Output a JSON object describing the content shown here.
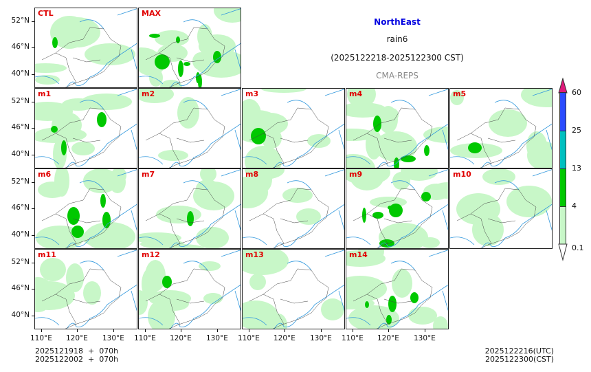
{
  "title": {
    "region": "NorthEast",
    "variable": "rain6",
    "period": "(2025122218-2025122300 CST)",
    "model": "CMA-REPS"
  },
  "colors": {
    "region": "#0000e0",
    "panel_label": "#e00000",
    "light_green": "#c8f7c8",
    "green": "#00c800",
    "cyan": "#00c0c0",
    "blue": "#2a4bff",
    "magenta": "#e0197a"
  },
  "panels": [
    {
      "label": "CTL",
      "row": 0,
      "col": 0,
      "rain": 0.35,
      "heavy": 0.05
    },
    {
      "label": "MAX",
      "row": 0,
      "col": 1,
      "rain": 0.8,
      "heavy": 0.6
    },
    {
      "label": "m1",
      "row": 1,
      "col": 0,
      "rain": 0.55,
      "heavy": 0.2
    },
    {
      "label": "m2",
      "row": 1,
      "col": 1,
      "rain": 0.2,
      "heavy": 0.0
    },
    {
      "label": "m3",
      "row": 1,
      "col": 2,
      "rain": 0.5,
      "heavy": 0.15
    },
    {
      "label": "m4",
      "row": 1,
      "col": 3,
      "rain": 0.65,
      "heavy": 0.25
    },
    {
      "label": "m5",
      "row": 1,
      "col": 4,
      "rain": 0.45,
      "heavy": 0.05
    },
    {
      "label": "m6",
      "row": 2,
      "col": 0,
      "rain": 0.6,
      "heavy": 0.3
    },
    {
      "label": "m7",
      "row": 2,
      "col": 1,
      "rain": 0.55,
      "heavy": 0.1
    },
    {
      "label": "m8",
      "row": 2,
      "col": 2,
      "rain": 0.35,
      "heavy": 0.0
    },
    {
      "label": "m9",
      "row": 2,
      "col": 3,
      "rain": 0.7,
      "heavy": 0.45
    },
    {
      "label": "m10",
      "row": 2,
      "col": 4,
      "rain": 0.25,
      "heavy": 0.0
    },
    {
      "label": "m11",
      "row": 3,
      "col": 0,
      "rain": 0.45,
      "heavy": 0.0
    },
    {
      "label": "m12",
      "row": 3,
      "col": 1,
      "rain": 0.55,
      "heavy": 0.1
    },
    {
      "label": "m13",
      "row": 3,
      "col": 2,
      "rain": 0.4,
      "heavy": 0.0
    },
    {
      "label": "m14",
      "row": 3,
      "col": 3,
      "rain": 0.6,
      "heavy": 0.3
    }
  ],
  "y_ticks": [
    "52°N",
    "46°N",
    "40°N"
  ],
  "x_ticks": [
    "110°E",
    "120°E",
    "130°E"
  ],
  "colorbar": {
    "levels": [
      "0.1",
      "4",
      "13",
      "25",
      "60"
    ]
  },
  "footer": {
    "init_utc": "2025121918  +  070h",
    "init_cst": "2025122002  +  070h",
    "valid_utc": "2025122216(UTC)",
    "valid_cst": "2025122300(CST)"
  }
}
